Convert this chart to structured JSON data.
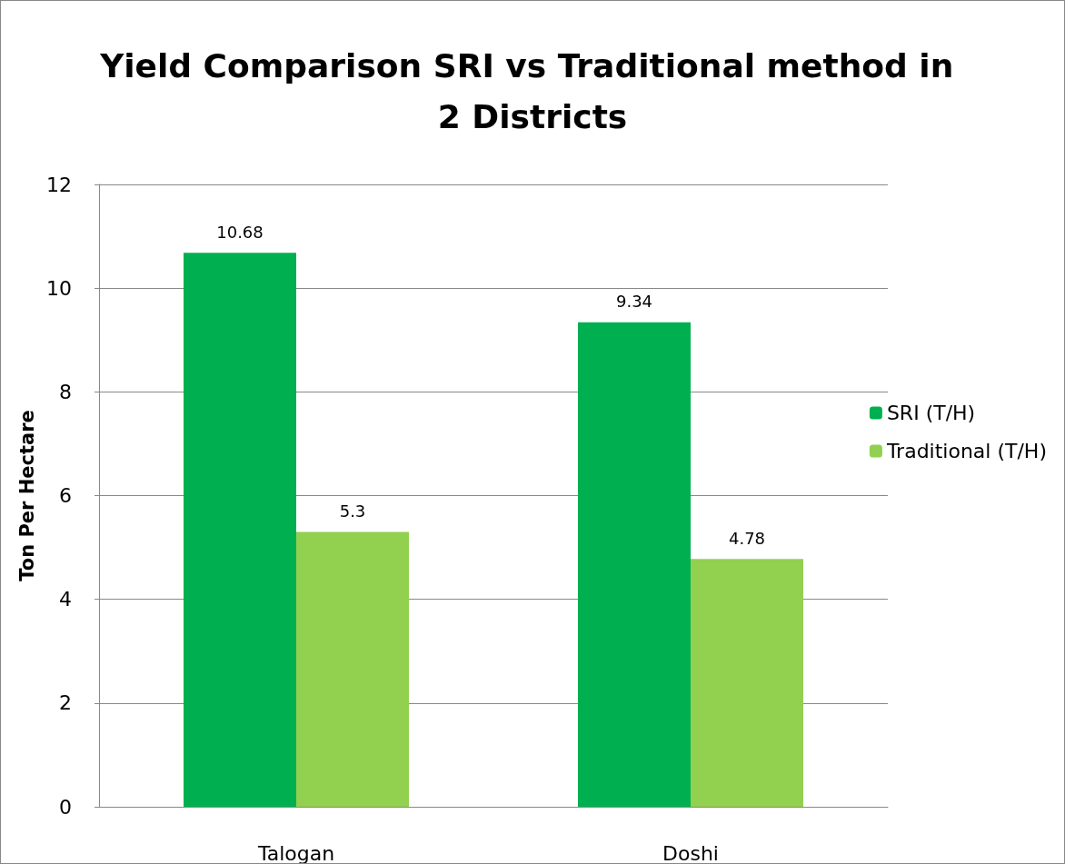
{
  "chart_data": {
    "type": "bar",
    "title": "Yield Comparison SRI vs Traditional method in 2 Districts",
    "ylabel": "Ton Per Hectare",
    "categories": [
      "Talogan",
      "Doshi"
    ],
    "series": [
      {
        "name": "SRI (T/H)",
        "color": "#00b050",
        "values": [
          10.68,
          9.34
        ]
      },
      {
        "name": "Traditional (T/H)",
        "color": "#92d050",
        "values": [
          5.3,
          4.78
        ]
      }
    ],
    "ylim": [
      0,
      12
    ],
    "yticks": [
      0,
      2,
      4,
      6,
      8,
      10,
      12
    ],
    "grid": "y",
    "legend": "right",
    "data_labels": true
  }
}
